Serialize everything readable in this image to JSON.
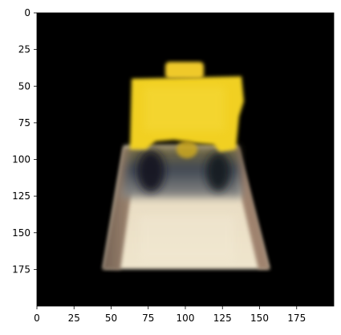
{
  "axes": {
    "x_tick_labels": [
      "0",
      "25",
      "50",
      "75",
      "100",
      "125",
      "150",
      "175"
    ],
    "y_tick_labels": [
      "0",
      "25",
      "50",
      "75",
      "100",
      "125",
      "150",
      "175"
    ],
    "xlim": [
      0,
      200
    ],
    "ylim": [
      200,
      0
    ],
    "y_inverted": true
  },
  "image": {
    "description_type": "rendered-reconstruction",
    "background": "#000000",
    "colors": {
      "top_block": "#f2d227",
      "cap": "#f4cf2a",
      "mid_dark": "#1f2430",
      "mid_gray": "#4e5866",
      "base_cream": "#ece1c8",
      "edge_brown": "#7e6152"
    }
  }
}
